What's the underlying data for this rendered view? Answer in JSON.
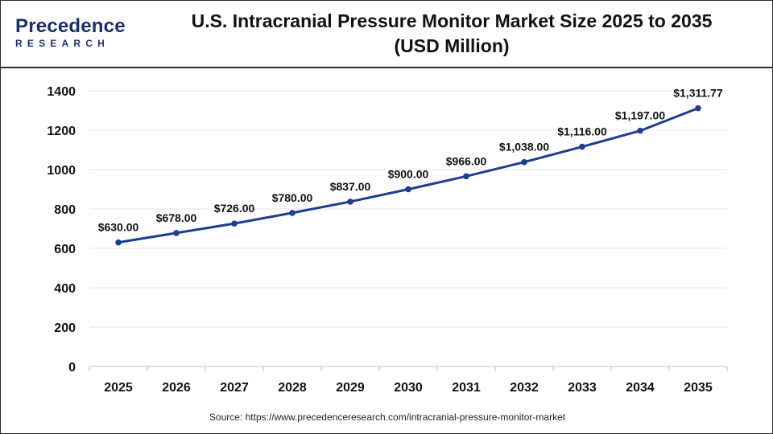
{
  "logo": {
    "line1": "Precedence",
    "line2": "RESEARCH"
  },
  "title_line1": "U.S. Intracranial Pressure Monitor Market Size 2025 to 2035",
  "title_line2": "(USD Million)",
  "source": "Source: https://www.precedenceresearch.com/intracranial-pressure-monitor-market",
  "colors": {
    "line": "#1f3c8f",
    "marker": "#1f3c8f",
    "grid": "#e3e3e3",
    "brand": "#1c2f6b"
  },
  "chart_data": {
    "type": "line",
    "title": "U.S. Intracranial Pressure Monitor Market Size 2025 to 2035 (USD Million)",
    "xlabel": "",
    "ylabel": "",
    "categories": [
      "2025",
      "2026",
      "2027",
      "2028",
      "2029",
      "2030",
      "2031",
      "2032",
      "2033",
      "2034",
      "2035"
    ],
    "series": [
      {
        "values": [
          630,
          678,
          726,
          780,
          837,
          900,
          966,
          1038,
          1116,
          1197,
          1311.77
        ],
        "labels": [
          "$630.00",
          "$678.00",
          "$726.00",
          "$780.00",
          "$837.00",
          "$900.00",
          "$966.00",
          "$1,038.00",
          "$1,116.00",
          "$1,197.00",
          "$1,311.77"
        ]
      }
    ],
    "ylim": [
      0,
      1400
    ],
    "yticks": [
      0,
      200,
      400,
      600,
      800,
      1000,
      1200,
      1400
    ],
    "grid": true,
    "legend": "none"
  }
}
